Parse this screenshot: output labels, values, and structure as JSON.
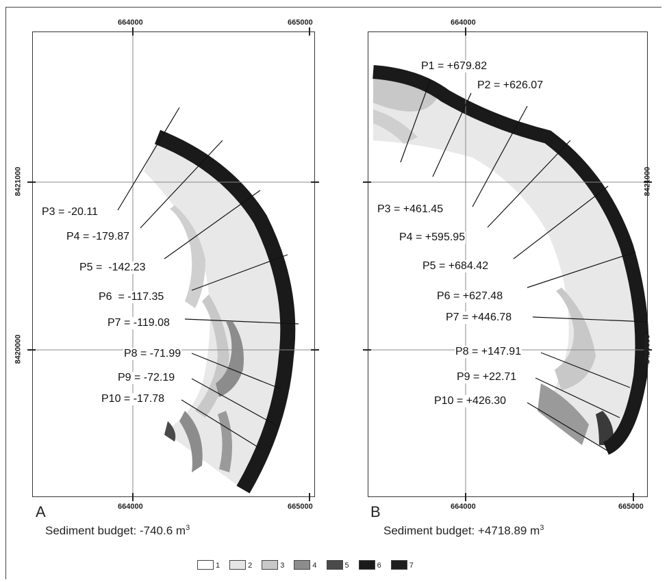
{
  "panel_a": {
    "letter": "A",
    "top_ticks": [
      "664000",
      "665000"
    ],
    "bottom_ticks": [
      "664000",
      "665000"
    ],
    "budget": "Sediment budget: -740.6 m",
    "budget_exp": "3",
    "profiles": [
      {
        "text": "P3 = -20.11"
      },
      {
        "text": "P4 = -179.87"
      },
      {
        "text": "P5 =  -142.23"
      },
      {
        "text": "P6  = -117.35"
      },
      {
        "text": "P7 = -119.08"
      },
      {
        "text": "P8 = -71.99"
      },
      {
        "text": "P9 = -72.19"
      },
      {
        "text": "P10 = -17.78"
      }
    ]
  },
  "panel_b": {
    "letter": "B",
    "top_ticks": [
      "664000"
    ],
    "bottom_ticks": [
      "664000",
      "665000"
    ],
    "right_ticks": [
      "8421000",
      "8420000"
    ],
    "budget": "Sediment budget: +4718.89 m",
    "budget_exp": "3",
    "profiles": [
      {
        "text": "P1 = +679.82"
      },
      {
        "text": "P2 = +626.07"
      },
      {
        "text": "P3 = +461.45"
      },
      {
        "text": "P4 = +595.95"
      },
      {
        "text": "P5 = +684.42"
      },
      {
        "text": "P6 = +627.48"
      },
      {
        "text": "P7 = +446.78"
      },
      {
        "text": "P8 = +147.91"
      },
      {
        "text": "P9 = +22.71"
      },
      {
        "text": "P10 = +426.30"
      }
    ]
  },
  "left_ticks": [
    "8421000",
    "8420000"
  ],
  "legend": [
    {
      "label": "1",
      "color": "#ffffff"
    },
    {
      "label": "2",
      "color": "#e6e6e6"
    },
    {
      "label": "3",
      "color": "#c8c8c8"
    },
    {
      "label": "4",
      "color": "#8c8c8c"
    },
    {
      "label": "5",
      "color": "#4a4a4a"
    },
    {
      "label": "6",
      "color": "#1a1a1a"
    },
    {
      "label": "7",
      "color": "#1e1e1e"
    }
  ]
}
